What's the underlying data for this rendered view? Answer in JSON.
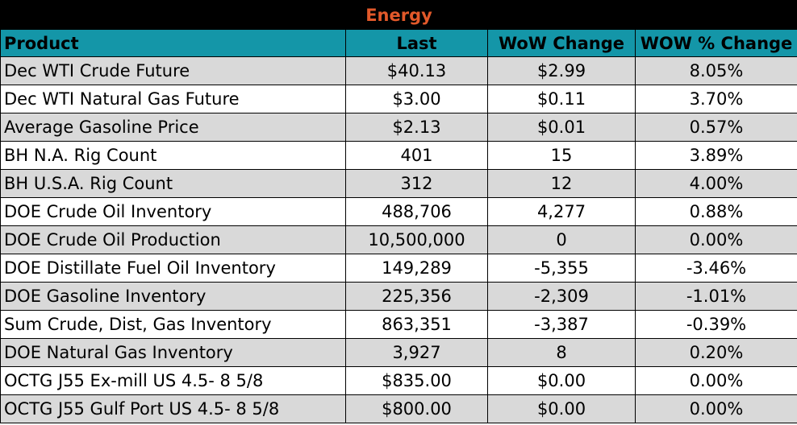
{
  "title": "Energy",
  "headers": {
    "product": "Product",
    "last": "Last",
    "wow_change": "WoW Change",
    "wow_pct_change": "WOW % Change"
  },
  "rows": [
    {
      "product": "Dec WTI Crude Future",
      "last": "$40.13",
      "wow_change": "$2.99",
      "wow_pct_change": "8.05%"
    },
    {
      "product": "Dec WTI Natural Gas Future",
      "last": "$3.00",
      "wow_change": "$0.11",
      "wow_pct_change": "3.70%"
    },
    {
      "product": "Average Gasoline Price",
      "last": "$2.13",
      "wow_change": "$0.01",
      "wow_pct_change": "0.57%"
    },
    {
      "product": "BH N.A. Rig Count",
      "last": "401",
      "wow_change": "15",
      "wow_pct_change": "3.89%"
    },
    {
      "product": "BH U.S.A. Rig Count",
      "last": "312",
      "wow_change": "12",
      "wow_pct_change": "4.00%"
    },
    {
      "product": "DOE Crude Oil Inventory",
      "last": "488,706",
      "wow_change": "4,277",
      "wow_pct_change": "0.88%"
    },
    {
      "product": "DOE Crude Oil Production",
      "last": "10,500,000",
      "wow_change": "0",
      "wow_pct_change": "0.00%"
    },
    {
      "product": "DOE Distillate Fuel Oil Inventory",
      "last": "149,289",
      "wow_change": "-5,355",
      "wow_pct_change": "-3.46%"
    },
    {
      "product": "DOE Gasoline Inventory",
      "last": "225,356",
      "wow_change": "-2,309",
      "wow_pct_change": "-1.01%"
    },
    {
      "product": "Sum Crude, Dist, Gas Inventory",
      "last": "863,351",
      "wow_change": "-3,387",
      "wow_pct_change": "-0.39%"
    },
    {
      "product": "DOE Natural Gas Inventory",
      "last": "3,927",
      "wow_change": "8",
      "wow_pct_change": "0.20%"
    },
    {
      "product": "OCTG J55 Ex-mill US 4.5- 8 5/8",
      "last": "$835.00",
      "wow_change": "$0.00",
      "wow_pct_change": "0.00%"
    },
    {
      "product": "OCTG J55 Gulf Port US 4.5- 8 5/8",
      "last": "$800.00",
      "wow_change": "$0.00",
      "wow_pct_change": "0.00%"
    }
  ],
  "colors": {
    "title_bg": "#000000",
    "title_text": "#e2592a",
    "header_bg": "#1496a8",
    "row_shade": "#d9d9d9",
    "row_plain": "#ffffff"
  }
}
